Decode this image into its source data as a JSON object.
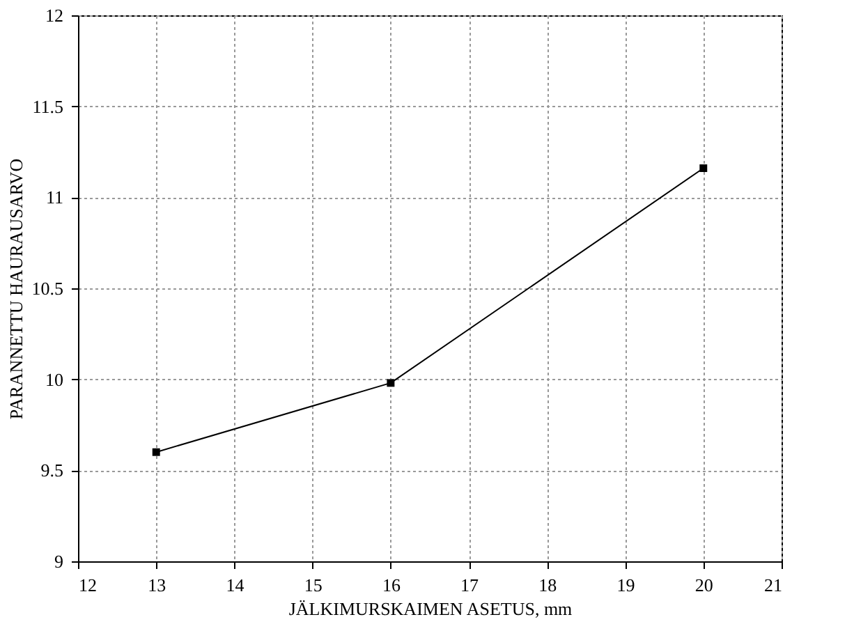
{
  "chart_data": {
    "type": "line",
    "xlabel": "JÄLKIMURSKAIMEN ASETUS, mm",
    "ylabel": "PARANNETTU HAURAUSARVO",
    "x": [
      13,
      16,
      20
    ],
    "series": [
      {
        "color": "#000000",
        "values": [
          9.6,
          9.98,
          11.16
        ]
      }
    ],
    "xlim": [
      12,
      21
    ],
    "xticks": [
      12,
      13,
      14,
      15,
      16,
      17,
      18,
      19,
      20,
      21
    ],
    "ylim": [
      9,
      12
    ],
    "yticks": [
      9,
      9.5,
      10,
      10.5,
      11,
      11.5,
      12
    ],
    "grid": true,
    "marker": "square",
    "line_style": "solid"
  }
}
